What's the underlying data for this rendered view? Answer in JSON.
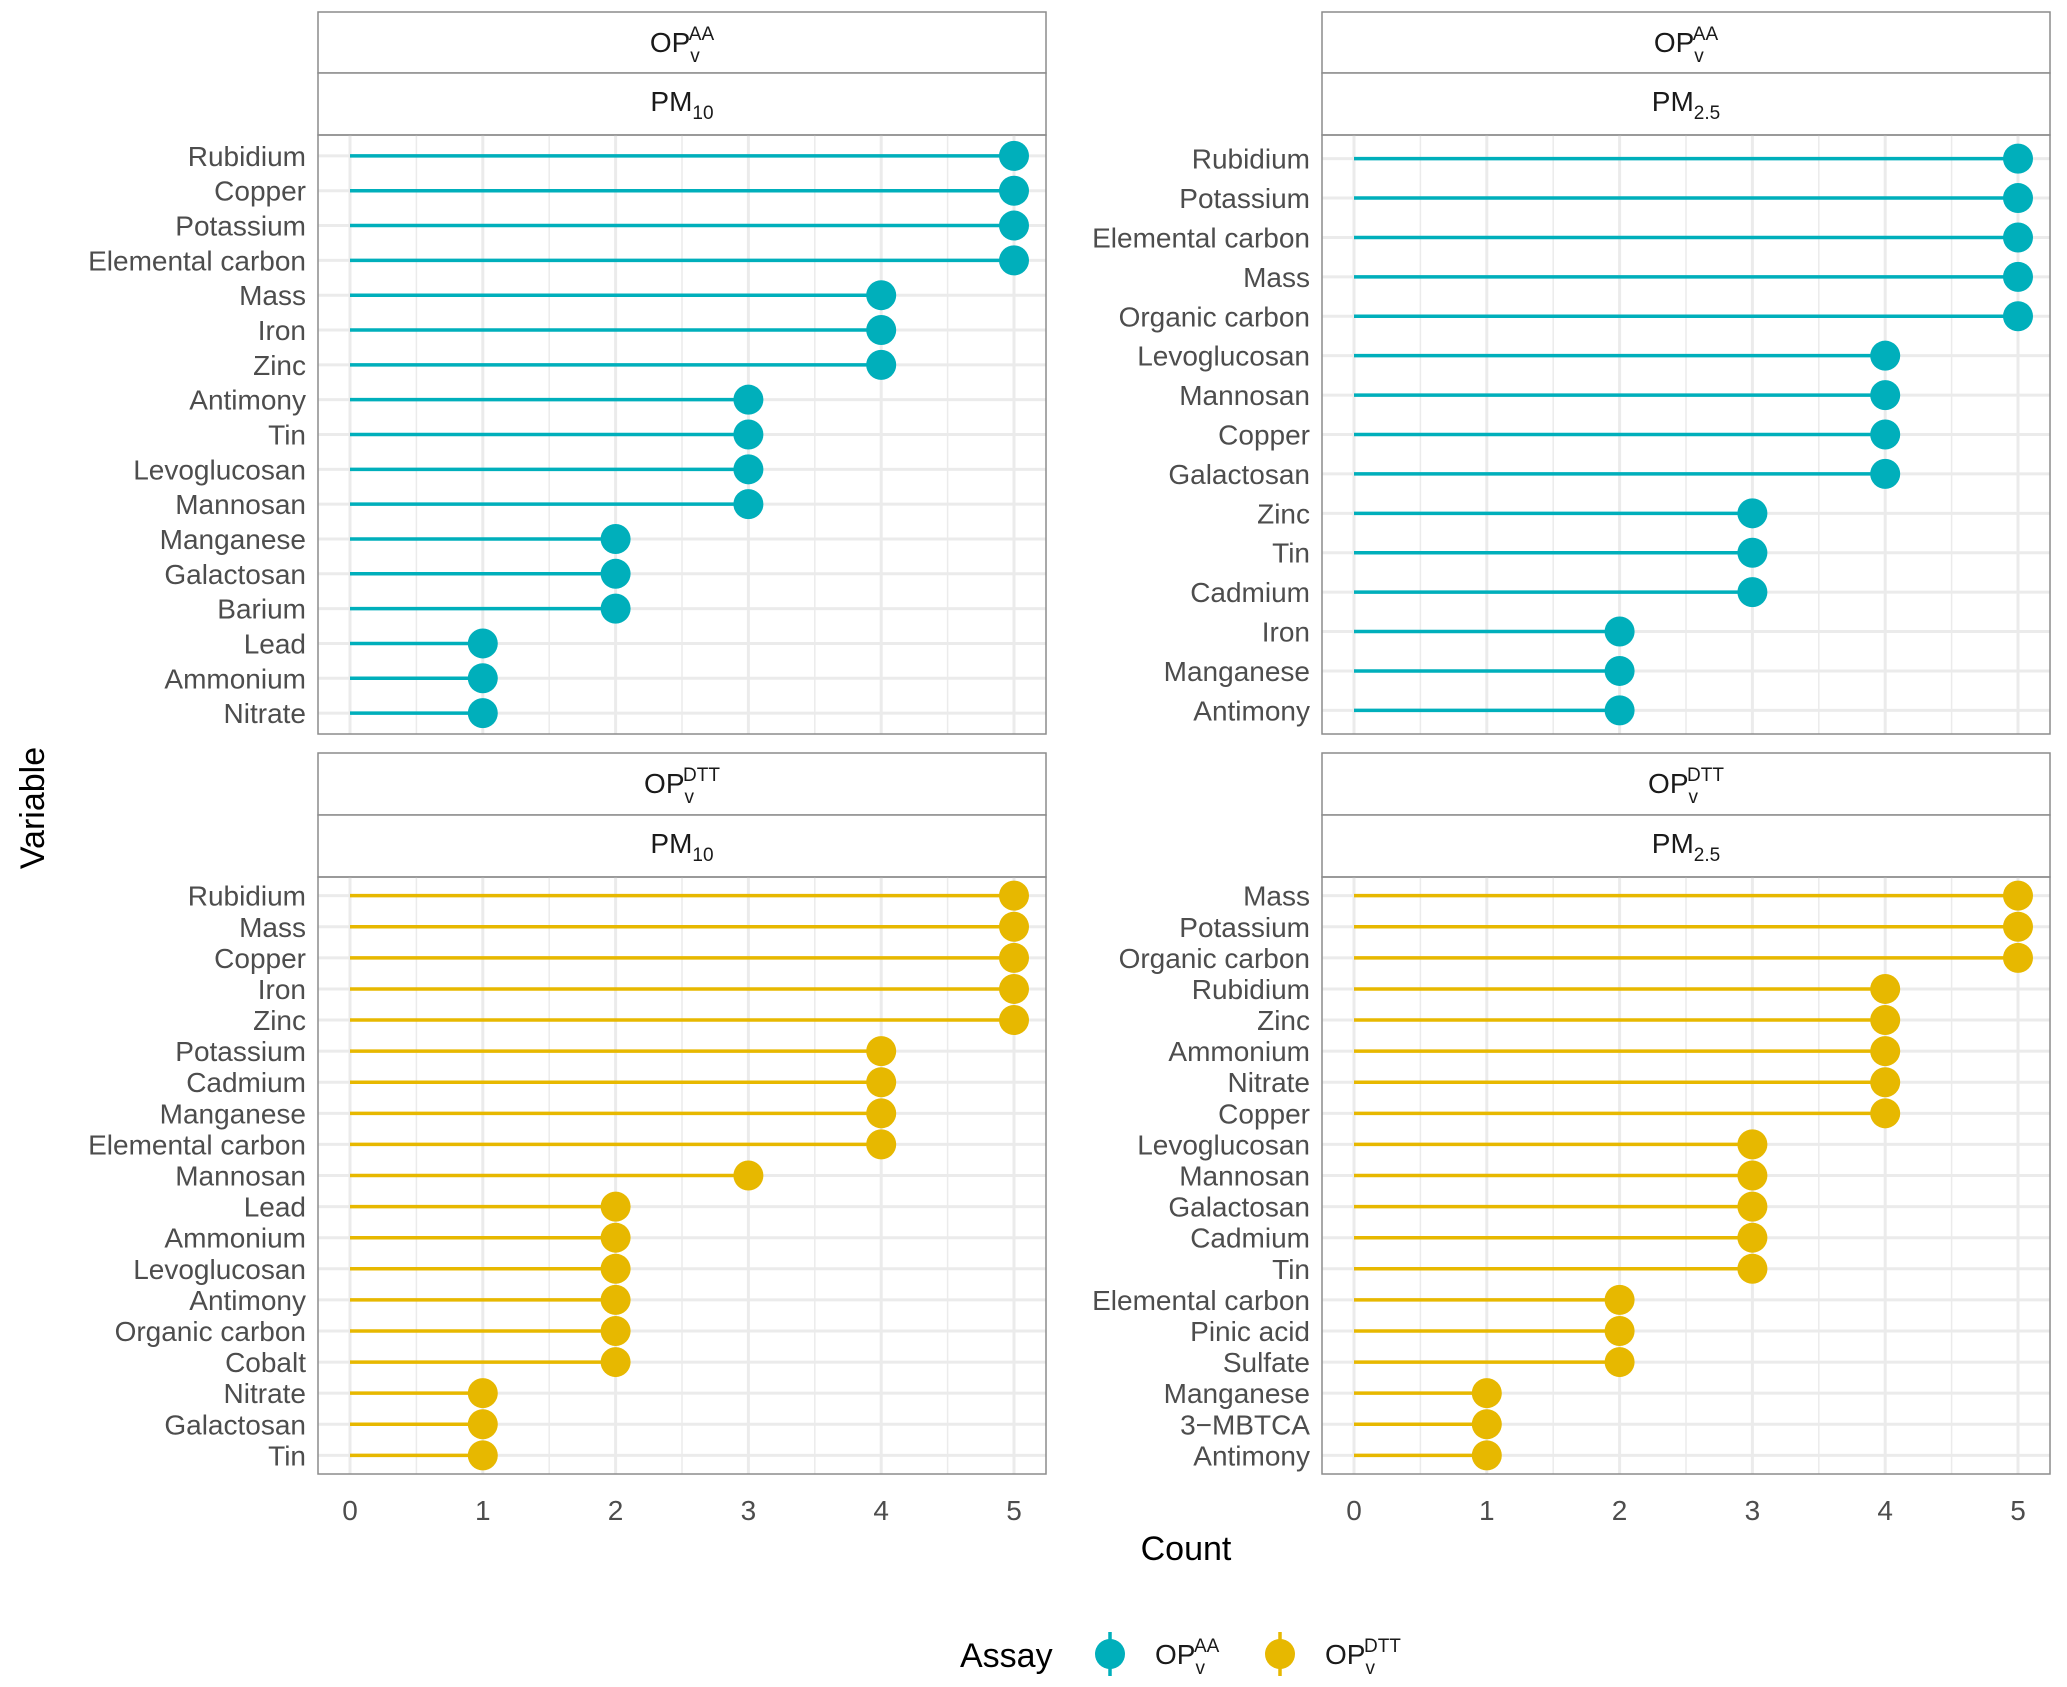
{
  "chart_data": {
    "type": "lollipop",
    "xlabel": "Count",
    "ylabel": "Variable",
    "xlim": [
      0,
      5
    ],
    "xticks": [
      "0",
      "1",
      "2",
      "3",
      "4",
      "5"
    ],
    "grid": true,
    "legend": {
      "title": "Assay",
      "placement": "bottom",
      "entries": [
        {
          "key": "AA",
          "base": "OP",
          "sup": "AA",
          "sub": "v",
          "color": "#00AFBB"
        },
        {
          "key": "DTT",
          "base": "OP",
          "sup": "DTT",
          "sub": "v",
          "color": "#E7B800"
        }
      ]
    },
    "panels": [
      {
        "assay": "AA",
        "strip_top": {
          "base": "OP",
          "sup": "AA",
          "sub": "v"
        },
        "strip_bottom": {
          "base": "PM",
          "sub": "10"
        },
        "color": "#00AFBB",
        "categories": [
          "Rubidium",
          "Copper",
          "Potassium",
          "Elemental carbon",
          "Mass",
          "Iron",
          "Zinc",
          "Antimony",
          "Tin",
          "Levoglucosan",
          "Mannosan",
          "Manganese",
          "Galactosan",
          "Barium",
          "Lead",
          "Ammonium",
          "Nitrate"
        ],
        "values": [
          5,
          5,
          5,
          5,
          4,
          4,
          4,
          3,
          3,
          3,
          3,
          2,
          2,
          2,
          1,
          1,
          1
        ]
      },
      {
        "assay": "AA",
        "strip_top": {
          "base": "OP",
          "sup": "AA",
          "sub": "v"
        },
        "strip_bottom": {
          "base": "PM",
          "sub": "2.5"
        },
        "color": "#00AFBB",
        "categories": [
          "Rubidium",
          "Potassium",
          "Elemental carbon",
          "Mass",
          "Organic carbon",
          "Levoglucosan",
          "Mannosan",
          "Copper",
          "Galactosan",
          "Zinc",
          "Tin",
          "Cadmium",
          "Iron",
          "Manganese",
          "Antimony"
        ],
        "values": [
          5,
          5,
          5,
          5,
          5,
          4,
          4,
          4,
          4,
          3,
          3,
          3,
          2,
          2,
          2
        ]
      },
      {
        "assay": "DTT",
        "strip_top": {
          "base": "OP",
          "sup": "DTT",
          "sub": "v"
        },
        "strip_bottom": {
          "base": "PM",
          "sub": "10"
        },
        "color": "#E7B800",
        "categories": [
          "Rubidium",
          "Mass",
          "Copper",
          "Iron",
          "Zinc",
          "Potassium",
          "Cadmium",
          "Manganese",
          "Elemental carbon",
          "Mannosan",
          "Lead",
          "Ammonium",
          "Levoglucosan",
          "Antimony",
          "Organic carbon",
          "Cobalt",
          "Nitrate",
          "Galactosan",
          "Tin"
        ],
        "values": [
          5,
          5,
          5,
          5,
          5,
          4,
          4,
          4,
          4,
          3,
          2,
          2,
          2,
          2,
          2,
          2,
          1,
          1,
          1
        ]
      },
      {
        "assay": "DTT",
        "strip_top": {
          "base": "OP",
          "sup": "DTT",
          "sub": "v"
        },
        "strip_bottom": {
          "base": "PM",
          "sub": "2.5"
        },
        "color": "#E7B800",
        "categories": [
          "Mass",
          "Potassium",
          "Organic carbon",
          "Rubidium",
          "Zinc",
          "Ammonium",
          "Nitrate",
          "Copper",
          "Levoglucosan",
          "Mannosan",
          "Galactosan",
          "Cadmium",
          "Tin",
          "Elemental carbon",
          "Pinic acid",
          "Sulfate",
          "Manganese",
          "3−MBTCA",
          "Antimony"
        ],
        "values": [
          5,
          5,
          5,
          4,
          4,
          4,
          4,
          4,
          3,
          3,
          3,
          3,
          3,
          2,
          2,
          2,
          1,
          1,
          1
        ]
      }
    ]
  }
}
